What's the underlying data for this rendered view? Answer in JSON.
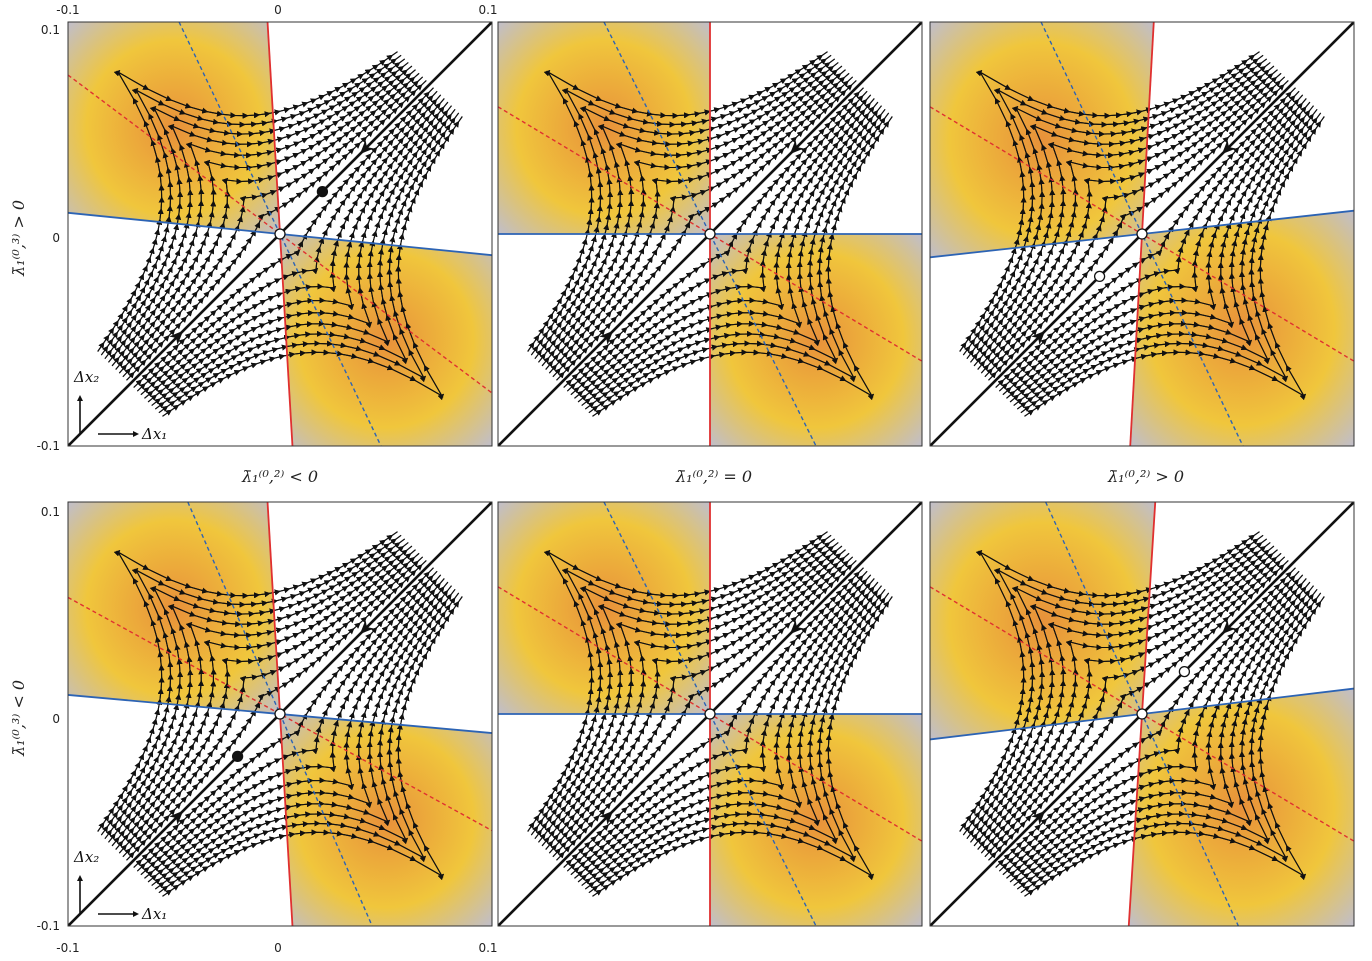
{
  "figure": {
    "ticks": {
      "x": [
        "-0.1",
        "0",
        "0.1"
      ],
      "y": [
        "0.1",
        "0",
        "-0.1"
      ]
    },
    "column_labels": [
      "λ̄₁⁽⁰,²⁾ < 0",
      "λ̄₁⁽⁰,²⁾ = 0",
      "λ̄₁⁽⁰,²⁾ > 0"
    ],
    "row_labels": [
      "λ̄₁⁽⁰,³⁾ > 0",
      "λ̄₁⁽⁰,³⁾ < 0"
    ],
    "axis_hints": {
      "x": "Δx₁",
      "y": "Δx₂"
    },
    "colors": {
      "orange": "#e8913a",
      "yellow": "#f0c63c",
      "lavender": "#b9bde0",
      "red_line": "#e03030",
      "blue_line": "#2c63b4",
      "stream": "#111111"
    },
    "panels": [
      {
        "row": 0,
        "col": 0,
        "redSlope": -17,
        "blueSlope": -0.1,
        "dashRedSlope": -0.75,
        "dashBlueSlope": -2.1,
        "fp": [
          0.02,
          0.02
        ],
        "shade": "left"
      },
      {
        "row": 0,
        "col": 1,
        "redSlope": 1000000000.0,
        "blueSlope": 0,
        "dashRedSlope": -0.6,
        "dashBlueSlope": -2.0,
        "fp": [
          0,
          0
        ],
        "shade": "left"
      },
      {
        "row": 0,
        "col": 2,
        "redSlope": 18,
        "blueSlope": 0.11,
        "dashRedSlope": -0.6,
        "dashBlueSlope": -2.1,
        "fp": [
          -0.02,
          -0.02
        ],
        "shade": "left"
      },
      {
        "row": 1,
        "col": 0,
        "redSlope": -17,
        "blueSlope": -0.09,
        "dashRedSlope": -0.55,
        "dashBlueSlope": -2.3,
        "fp": [
          -0.02,
          -0.02
        ],
        "shade": "left"
      },
      {
        "row": 1,
        "col": 1,
        "redSlope": 1000000000.0,
        "blueSlope": 0,
        "dashRedSlope": -0.6,
        "dashBlueSlope": -2.0,
        "fp": [
          0,
          0
        ],
        "shade": "left"
      },
      {
        "row": 1,
        "col": 2,
        "redSlope": 16,
        "blueSlope": 0.12,
        "dashRedSlope": -0.6,
        "dashBlueSlope": -2.2,
        "fp": [
          0.02,
          0.02
        ],
        "shade": "left"
      }
    ]
  }
}
